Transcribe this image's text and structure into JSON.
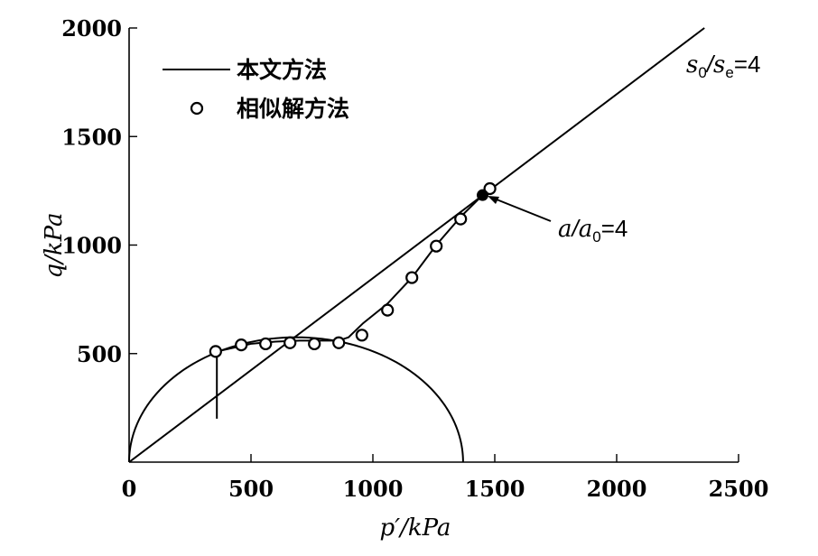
{
  "chart_data": {
    "type": "scatter",
    "title": "",
    "xlabel": "p′/kPa",
    "ylabel": "q/kPa",
    "xlim": [
      0,
      2500
    ],
    "ylim": [
      0,
      2000
    ],
    "xticks": [
      0,
      500,
      1000,
      1500,
      2000,
      2500
    ],
    "yticks": [
      500,
      1000,
      1500,
      2000
    ],
    "xtick_labels": [
      "0",
      "500",
      "1000",
      "1500",
      "2000",
      "2500"
    ],
    "ytick_labels": [
      "500",
      "1000",
      "1500",
      "2000"
    ],
    "legend": [
      {
        "label": "本文方法",
        "marker": "line"
      },
      {
        "label": "相似解方法",
        "marker": "open-circle"
      }
    ],
    "series": [
      {
        "name": "本文方法",
        "kind": "line",
        "x": [
          360,
          360,
          360,
          420,
          500,
          600,
          700,
          800,
          860,
          900,
          960,
          1060,
          1160,
          1260,
          1360,
          1450
        ],
        "y": [
          200,
          500,
          510,
          525,
          545,
          555,
          560,
          560,
          560,
          575,
          640,
          730,
          850,
          1000,
          1130,
          1230
        ]
      },
      {
        "name": "相似解方法",
        "kind": "scatter",
        "x": [
          355,
          460,
          560,
          660,
          760,
          860,
          955,
          1060,
          1160,
          1260,
          1360,
          1480
        ],
        "y": [
          510,
          540,
          545,
          550,
          545,
          550,
          585,
          700,
          850,
          995,
          1120,
          1260
        ]
      }
    ],
    "reference_curves": [
      {
        "name": "critical-state-line",
        "kind": "line",
        "x": [
          0,
          2360
        ],
        "y": [
          0,
          2000
        ]
      },
      {
        "name": "yield-surface",
        "kind": "ellipse",
        "p_center": 685,
        "p_radius": 685,
        "q_half_height": 575
      }
    ],
    "annotations": [
      {
        "name": "ratio-s",
        "text_parts": [
          "s",
          "0",
          "/",
          "s",
          "e",
          "=4"
        ]
      },
      {
        "name": "ratio-a",
        "text_parts": [
          "a",
          "/",
          "a",
          "0",
          "=4"
        ],
        "point": [
          1450,
          1230
        ]
      }
    ]
  }
}
